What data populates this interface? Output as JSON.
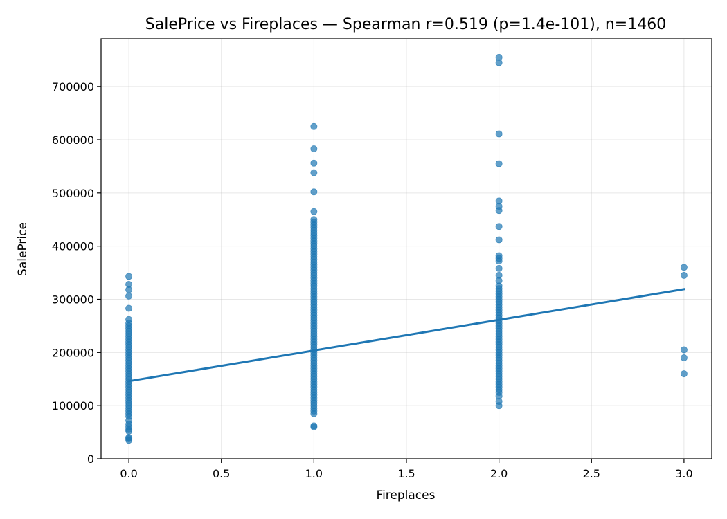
{
  "chart_data": {
    "type": "scatter",
    "title": "SalePrice vs Fireplaces — Spearman r=0.519 (p=1.4e-101), n=1460",
    "xlabel": "Fireplaces",
    "ylabel": "SalePrice",
    "xlim": [
      -0.15,
      3.15
    ],
    "ylim": [
      0,
      790000
    ],
    "x_ticks": [
      0.0,
      0.5,
      1.0,
      1.5,
      2.0,
      2.5,
      3.0
    ],
    "x_tick_labels": [
      "0.0",
      "0.5",
      "1.0",
      "1.5",
      "2.0",
      "2.5",
      "3.0"
    ],
    "y_ticks": [
      0,
      100000,
      200000,
      300000,
      400000,
      500000,
      600000,
      700000
    ],
    "y_tick_labels": [
      "0",
      "100000",
      "200000",
      "300000",
      "400000",
      "500000",
      "600000",
      "700000"
    ],
    "grid": true,
    "point_color": "#1f77b4",
    "line_color": "#1f77b4",
    "points": [
      {
        "x": 0,
        "y": 34900
      },
      {
        "x": 0,
        "y": 37900
      },
      {
        "x": 0,
        "y": 40000
      },
      {
        "x": 0,
        "y": 52000
      },
      {
        "x": 0,
        "y": 55000
      },
      {
        "x": 0,
        "y": 60000
      },
      {
        "x": 0,
        "y": 65000
      },
      {
        "x": 0,
        "y": 72000
      },
      {
        "x": 0,
        "y": 80000
      },
      {
        "x": 0,
        "y": 85000
      },
      {
        "x": 0,
        "y": 90000
      },
      {
        "x": 0,
        "y": 95000
      },
      {
        "x": 0,
        "y": 100000
      },
      {
        "x": 0,
        "y": 105000
      },
      {
        "x": 0,
        "y": 110000
      },
      {
        "x": 0,
        "y": 115000
      },
      {
        "x": 0,
        "y": 120000
      },
      {
        "x": 0,
        "y": 125000
      },
      {
        "x": 0,
        "y": 130000
      },
      {
        "x": 0,
        "y": 135000
      },
      {
        "x": 0,
        "y": 140000
      },
      {
        "x": 0,
        "y": 145000
      },
      {
        "x": 0,
        "y": 150000
      },
      {
        "x": 0,
        "y": 155000
      },
      {
        "x": 0,
        "y": 160000
      },
      {
        "x": 0,
        "y": 165000
      },
      {
        "x": 0,
        "y": 170000
      },
      {
        "x": 0,
        "y": 175000
      },
      {
        "x": 0,
        "y": 180000
      },
      {
        "x": 0,
        "y": 185000
      },
      {
        "x": 0,
        "y": 190000
      },
      {
        "x": 0,
        "y": 195000
      },
      {
        "x": 0,
        "y": 200000
      },
      {
        "x": 0,
        "y": 205000
      },
      {
        "x": 0,
        "y": 210000
      },
      {
        "x": 0,
        "y": 215000
      },
      {
        "x": 0,
        "y": 220000
      },
      {
        "x": 0,
        "y": 225000
      },
      {
        "x": 0,
        "y": 230000
      },
      {
        "x": 0,
        "y": 235000
      },
      {
        "x": 0,
        "y": 240000
      },
      {
        "x": 0,
        "y": 245000
      },
      {
        "x": 0,
        "y": 250000
      },
      {
        "x": 0,
        "y": 255000
      },
      {
        "x": 0,
        "y": 262000
      },
      {
        "x": 0,
        "y": 283000
      },
      {
        "x": 0,
        "y": 306000
      },
      {
        "x": 0,
        "y": 318000
      },
      {
        "x": 0,
        "y": 328000
      },
      {
        "x": 0,
        "y": 343000
      },
      {
        "x": 1,
        "y": 60000
      },
      {
        "x": 1,
        "y": 62000
      },
      {
        "x": 1,
        "y": 85000
      },
      {
        "x": 1,
        "y": 90000
      },
      {
        "x": 1,
        "y": 95000
      },
      {
        "x": 1,
        "y": 100000
      },
      {
        "x": 1,
        "y": 105000
      },
      {
        "x": 1,
        "y": 110000
      },
      {
        "x": 1,
        "y": 115000
      },
      {
        "x": 1,
        "y": 120000
      },
      {
        "x": 1,
        "y": 125000
      },
      {
        "x": 1,
        "y": 130000
      },
      {
        "x": 1,
        "y": 135000
      },
      {
        "x": 1,
        "y": 140000
      },
      {
        "x": 1,
        "y": 145000
      },
      {
        "x": 1,
        "y": 150000
      },
      {
        "x": 1,
        "y": 155000
      },
      {
        "x": 1,
        "y": 160000
      },
      {
        "x": 1,
        "y": 165000
      },
      {
        "x": 1,
        "y": 170000
      },
      {
        "x": 1,
        "y": 175000
      },
      {
        "x": 1,
        "y": 180000
      },
      {
        "x": 1,
        "y": 185000
      },
      {
        "x": 1,
        "y": 190000
      },
      {
        "x": 1,
        "y": 195000
      },
      {
        "x": 1,
        "y": 200000
      },
      {
        "x": 1,
        "y": 205000
      },
      {
        "x": 1,
        "y": 210000
      },
      {
        "x": 1,
        "y": 215000
      },
      {
        "x": 1,
        "y": 220000
      },
      {
        "x": 1,
        "y": 225000
      },
      {
        "x": 1,
        "y": 230000
      },
      {
        "x": 1,
        "y": 235000
      },
      {
        "x": 1,
        "y": 240000
      },
      {
        "x": 1,
        "y": 245000
      },
      {
        "x": 1,
        "y": 250000
      },
      {
        "x": 1,
        "y": 255000
      },
      {
        "x": 1,
        "y": 260000
      },
      {
        "x": 1,
        "y": 265000
      },
      {
        "x": 1,
        "y": 270000
      },
      {
        "x": 1,
        "y": 275000
      },
      {
        "x": 1,
        "y": 280000
      },
      {
        "x": 1,
        "y": 285000
      },
      {
        "x": 1,
        "y": 290000
      },
      {
        "x": 1,
        "y": 295000
      },
      {
        "x": 1,
        "y": 300000
      },
      {
        "x": 1,
        "y": 305000
      },
      {
        "x": 1,
        "y": 310000
      },
      {
        "x": 1,
        "y": 315000
      },
      {
        "x": 1,
        "y": 320000
      },
      {
        "x": 1,
        "y": 325000
      },
      {
        "x": 1,
        "y": 330000
      },
      {
        "x": 1,
        "y": 335000
      },
      {
        "x": 1,
        "y": 340000
      },
      {
        "x": 1,
        "y": 345000
      },
      {
        "x": 1,
        "y": 350000
      },
      {
        "x": 1,
        "y": 355000
      },
      {
        "x": 1,
        "y": 360000
      },
      {
        "x": 1,
        "y": 365000
      },
      {
        "x": 1,
        "y": 370000
      },
      {
        "x": 1,
        "y": 375000
      },
      {
        "x": 1,
        "y": 380000
      },
      {
        "x": 1,
        "y": 385000
      },
      {
        "x": 1,
        "y": 390000
      },
      {
        "x": 1,
        "y": 395000
      },
      {
        "x": 1,
        "y": 400000
      },
      {
        "x": 1,
        "y": 405000
      },
      {
        "x": 1,
        "y": 410000
      },
      {
        "x": 1,
        "y": 415000
      },
      {
        "x": 1,
        "y": 420000
      },
      {
        "x": 1,
        "y": 425000
      },
      {
        "x": 1,
        "y": 430000
      },
      {
        "x": 1,
        "y": 435000
      },
      {
        "x": 1,
        "y": 440000
      },
      {
        "x": 1,
        "y": 445000
      },
      {
        "x": 1,
        "y": 450000
      },
      {
        "x": 1,
        "y": 465000
      },
      {
        "x": 1,
        "y": 502000
      },
      {
        "x": 1,
        "y": 538000
      },
      {
        "x": 1,
        "y": 556000
      },
      {
        "x": 1,
        "y": 583000
      },
      {
        "x": 1,
        "y": 625000
      },
      {
        "x": 2,
        "y": 100000
      },
      {
        "x": 2,
        "y": 108000
      },
      {
        "x": 2,
        "y": 118000
      },
      {
        "x": 2,
        "y": 125000
      },
      {
        "x": 2,
        "y": 130000
      },
      {
        "x": 2,
        "y": 135000
      },
      {
        "x": 2,
        "y": 140000
      },
      {
        "x": 2,
        "y": 145000
      },
      {
        "x": 2,
        "y": 150000
      },
      {
        "x": 2,
        "y": 155000
      },
      {
        "x": 2,
        "y": 160000
      },
      {
        "x": 2,
        "y": 165000
      },
      {
        "x": 2,
        "y": 170000
      },
      {
        "x": 2,
        "y": 175000
      },
      {
        "x": 2,
        "y": 180000
      },
      {
        "x": 2,
        "y": 185000
      },
      {
        "x": 2,
        "y": 190000
      },
      {
        "x": 2,
        "y": 195000
      },
      {
        "x": 2,
        "y": 200000
      },
      {
        "x": 2,
        "y": 205000
      },
      {
        "x": 2,
        "y": 210000
      },
      {
        "x": 2,
        "y": 215000
      },
      {
        "x": 2,
        "y": 220000
      },
      {
        "x": 2,
        "y": 225000
      },
      {
        "x": 2,
        "y": 230000
      },
      {
        "x": 2,
        "y": 235000
      },
      {
        "x": 2,
        "y": 240000
      },
      {
        "x": 2,
        "y": 245000
      },
      {
        "x": 2,
        "y": 250000
      },
      {
        "x": 2,
        "y": 255000
      },
      {
        "x": 2,
        "y": 260000
      },
      {
        "x": 2,
        "y": 265000
      },
      {
        "x": 2,
        "y": 270000
      },
      {
        "x": 2,
        "y": 275000
      },
      {
        "x": 2,
        "y": 280000
      },
      {
        "x": 2,
        "y": 285000
      },
      {
        "x": 2,
        "y": 290000
      },
      {
        "x": 2,
        "y": 295000
      },
      {
        "x": 2,
        "y": 300000
      },
      {
        "x": 2,
        "y": 305000
      },
      {
        "x": 2,
        "y": 310000
      },
      {
        "x": 2,
        "y": 315000
      },
      {
        "x": 2,
        "y": 320000
      },
      {
        "x": 2,
        "y": 325000
      },
      {
        "x": 2,
        "y": 335000
      },
      {
        "x": 2,
        "y": 345000
      },
      {
        "x": 2,
        "y": 358000
      },
      {
        "x": 2,
        "y": 372000
      },
      {
        "x": 2,
        "y": 377000
      },
      {
        "x": 2,
        "y": 382000
      },
      {
        "x": 2,
        "y": 412000
      },
      {
        "x": 2,
        "y": 437000
      },
      {
        "x": 2,
        "y": 467000
      },
      {
        "x": 2,
        "y": 475000
      },
      {
        "x": 2,
        "y": 485000
      },
      {
        "x": 2,
        "y": 555000
      },
      {
        "x": 2,
        "y": 611000
      },
      {
        "x": 2,
        "y": 745000
      },
      {
        "x": 2,
        "y": 755000
      },
      {
        "x": 3,
        "y": 160000
      },
      {
        "x": 3,
        "y": 190000
      },
      {
        "x": 3,
        "y": 205000
      },
      {
        "x": 3,
        "y": 345000
      },
      {
        "x": 3,
        "y": 360000
      }
    ],
    "regression_line": {
      "x": [
        0,
        3
      ],
      "y": [
        146000,
        319000
      ]
    }
  }
}
